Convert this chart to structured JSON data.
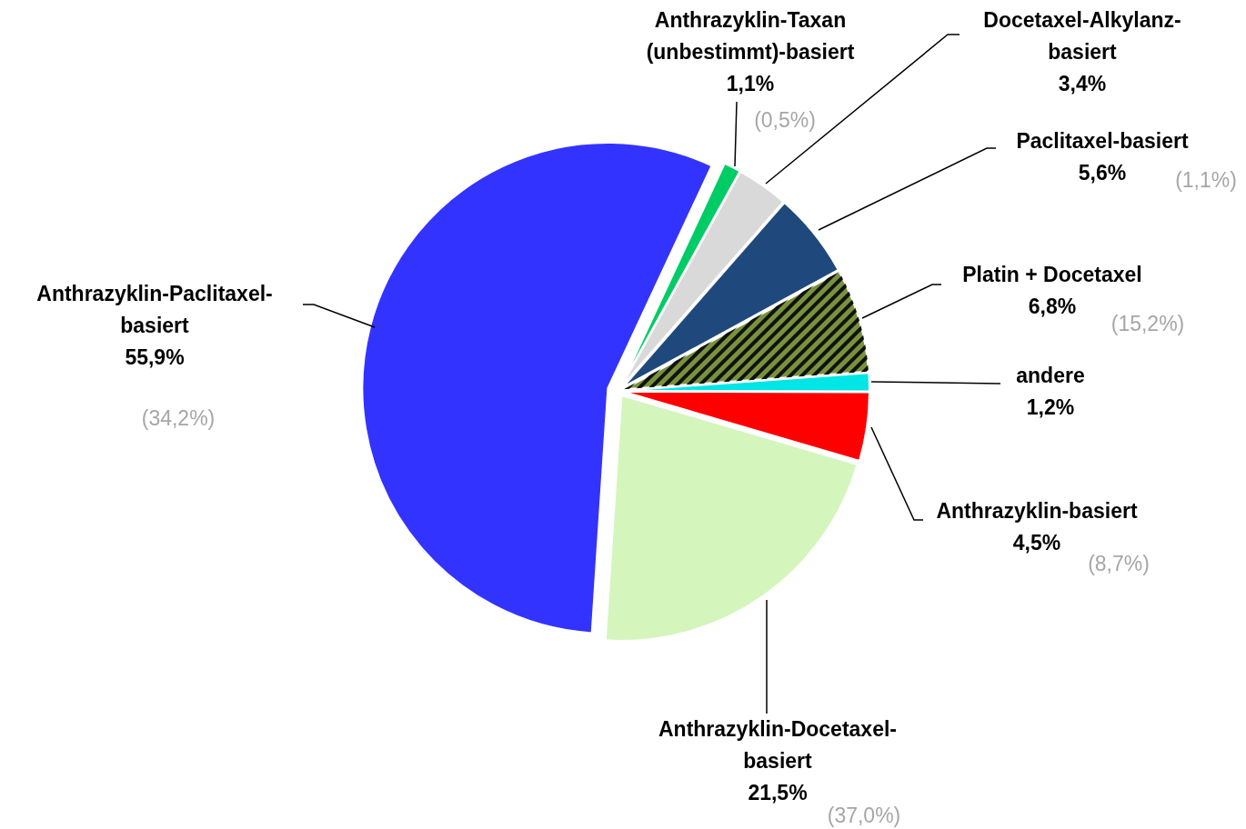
{
  "chart_data": {
    "type": "pie",
    "categories": [
      "Anthrazyklin-Taxan (unbestimmt)-basiert",
      "Docetaxel-Alkylanz-basiert",
      "Paclitaxel-basiert",
      "Platin + Docetaxel",
      "andere",
      "Anthrazyklin-basiert",
      "Anthrazyklin-Docetaxel-basiert",
      "Anthrazyklin-Paclitaxel-basiert"
    ],
    "values": [
      1.1,
      3.4,
      5.6,
      6.8,
      1.2,
      4.5,
      21.5,
      55.9
    ],
    "colors": [
      "#00cc66",
      "#d9d9d9",
      "#1f497d",
      "#77933c",
      "#00e5e5",
      "#ff0000",
      "#d4f5bc",
      "#3333ff"
    ],
    "value_labels": [
      "1,1%",
      "3,4%",
      "5,6%",
      "6,8%",
      "1,2%",
      "4,5%",
      "21,5%",
      "55,9%"
    ],
    "annotations": [
      "(0,5%)",
      "(1,1%)",
      "(15,2%)",
      "(8,7%)",
      "(37,0%)",
      "(34,2%)"
    ]
  }
}
